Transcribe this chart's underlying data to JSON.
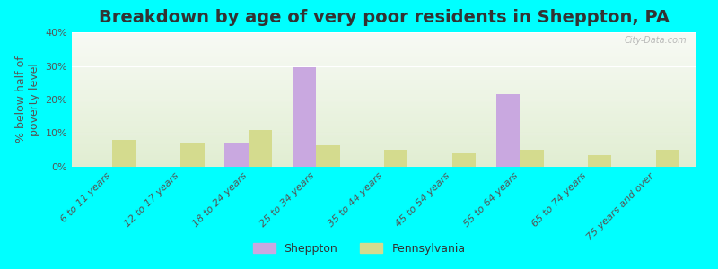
{
  "title": "Breakdown by age of very poor residents in Sheppton, PA",
  "ylabel": "% below half of\npoverty level",
  "categories": [
    "6 to 11 years",
    "12 to 17 years",
    "18 to 24 years",
    "25 to 34 years",
    "35 to 44 years",
    "45 to 54 years",
    "55 to 64 years",
    "65 to 74 years",
    "75 years and over"
  ],
  "sheppton": [
    0,
    0,
    7,
    29.5,
    0,
    0,
    21.5,
    0,
    0
  ],
  "pennsylvania": [
    8,
    7,
    11,
    6.5,
    5,
    4,
    5,
    3.5,
    5
  ],
  "sheppton_color": "#c9a8e0",
  "pennsylvania_color": "#d4db8e",
  "ylim": [
    0,
    40
  ],
  "yticks": [
    0,
    10,
    20,
    30,
    40
  ],
  "ytick_labels": [
    "0%",
    "10%",
    "20%",
    "30%",
    "40%"
  ],
  "background_outer": "#00ffff",
  "bar_width": 0.35,
  "title_fontsize": 14,
  "axis_label_fontsize": 9,
  "tick_fontsize": 8,
  "watermark": "City-Data.com",
  "legend_sheppton": "Sheppton",
  "legend_pennsylvania": "Pennsylvania"
}
